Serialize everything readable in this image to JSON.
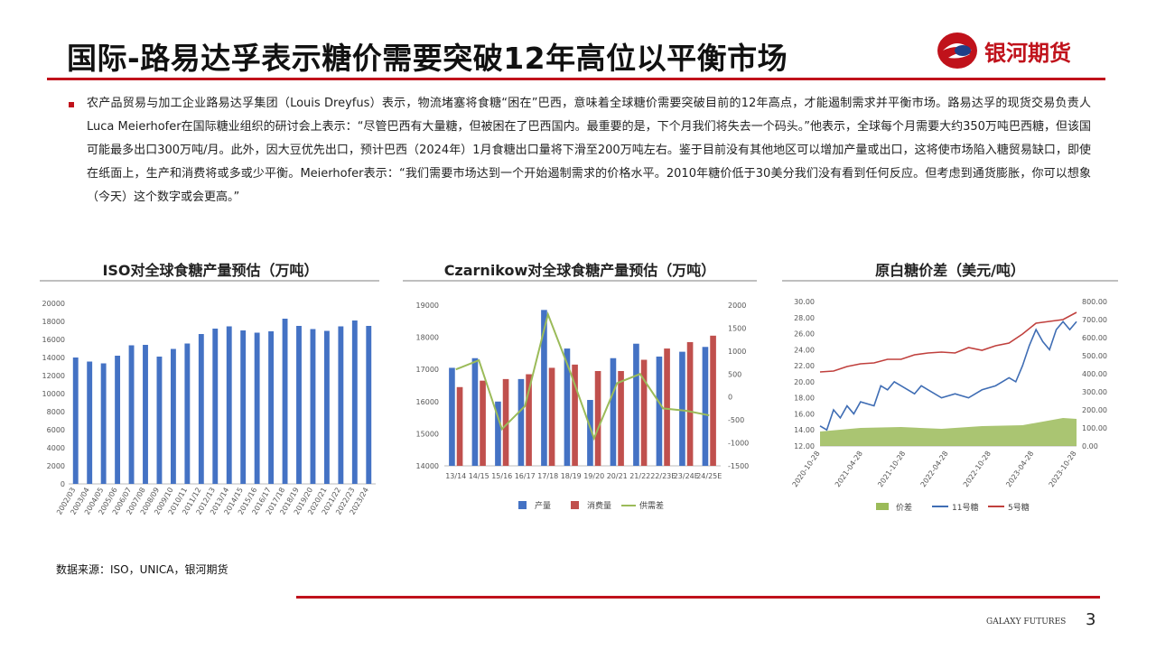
{
  "header": {
    "title": "国际-路易达孚表示糖价需要突破12年高位以平衡市场",
    "logo_text": "银河期货"
  },
  "body": {
    "paragraph": "农产品贸易与加工企业路易达孚集团（Louis Dreyfus）表示，物流堵塞将食糖“困在”巴西，意味着全球糖价需要突破目前的12年高点，才能遏制需求并平衡市场。路易达孚的现货交易负责人Luca Meierhofer在国际糖业组织的研讨会上表示：“尽管巴西有大量糖，但被困在了巴西国内。最重要的是，下个月我们将失去一个码头。”他表示，全球每个月需要大约350万吨巴西糖，但该国可能最多出口300万吨/月。此外，因大豆优先出口，预计巴西（2024年）1月食糖出口量将下滑至200万吨左右。鉴于目前没有其他地区可以增加产量或出口，这将使市场陷入糖贸易缺口，即使在纸面上，生产和消费将或多或少平衡。Meierhofer表示：“我们需要市场达到一个开始遏制需求的价格水平。2010年糖价低于30美分我们没有看到任何反应。但考虑到通货膨胀，你可以想象（今天）这个数字或会更高。”"
  },
  "colors": {
    "brand_red": "#c0121b",
    "bar_blue": "#4472c4",
    "bar_red": "#c0504d",
    "line_green": "#9bbb59",
    "series_blue": "#3f6db4",
    "series_red": "#c0403d"
  },
  "chart_data": [
    {
      "type": "bar",
      "title": "ISO对全球食糖产量预估（万吨）",
      "categories": [
        "2002/03",
        "2003/04",
        "2004/05",
        "2005/06",
        "2006/07",
        "2007/08",
        "2008/09",
        "2009/10",
        "2010/11",
        "2011/12",
        "2012/13",
        "2013/14",
        "2014/15",
        "2015/16",
        "2016/17",
        "2017/18",
        "2018/19",
        "2019/20",
        "2020/21",
        "2021/22",
        "2022/23",
        "2023/24"
      ],
      "values": [
        14000,
        13550,
        13350,
        14200,
        15350,
        15400,
        14100,
        14950,
        15550,
        16600,
        17200,
        17450,
        17000,
        16750,
        16900,
        18300,
        17500,
        17150,
        16950,
        17450,
        18100,
        17500
      ],
      "ylim": [
        0,
        20000
      ],
      "yticks": [
        0,
        2000,
        4000,
        6000,
        8000,
        10000,
        12000,
        14000,
        16000,
        18000,
        20000
      ]
    },
    {
      "type": "bar",
      "title": "Czarnikow对全球食糖产量预估（万吨）",
      "categories": [
        "13/14",
        "14/15",
        "15/16",
        "16/17",
        "17/18",
        "18/19",
        "19/20",
        "20/21",
        "21/22",
        "22/23E",
        "23/24E",
        "24/25E"
      ],
      "series": [
        {
          "name": "产量",
          "values": [
            17050,
            17350,
            16000,
            16700,
            18850,
            17650,
            16050,
            17350,
            17800,
            17400,
            17550,
            17700
          ]
        },
        {
          "name": "消费量",
          "values": [
            16450,
            16650,
            16700,
            16850,
            17050,
            17150,
            16950,
            16950,
            17300,
            17650,
            17850,
            18050
          ]
        },
        {
          "name": "供需差",
          "values": [
            600,
            800,
            -700,
            -200,
            1800,
            500,
            -900,
            300,
            500,
            -250,
            -300,
            -400
          ]
        }
      ],
      "ylim": [
        14000,
        19000
      ],
      "y2lim": [
        -1500,
        2000
      ],
      "yticks": [
        14000,
        15000,
        16000,
        17000,
        18000,
        19000
      ],
      "y2ticks": [
        -1500,
        -1000,
        -500,
        0,
        500,
        1000,
        1500,
        2000
      ]
    },
    {
      "type": "line",
      "title": "原白糖价差（美元/吨）",
      "x_ticks": [
        "2020-10-28",
        "2021-04-28",
        "2021-10-28",
        "2022-04-28",
        "2022-10-28",
        "2023-04-28",
        "2023-10-28"
      ],
      "series": [
        {
          "name": "价差",
          "points": [
            [
              0,
              80
            ],
            [
              6,
              100
            ],
            [
              12,
              105
            ],
            [
              18,
              95
            ],
            [
              24,
              110
            ],
            [
              30,
              115
            ],
            [
              36,
              155
            ],
            [
              38,
              150
            ]
          ]
        },
        {
          "name": "11号糖",
          "points": [
            [
              0,
              14.5
            ],
            [
              1,
              14.0
            ],
            [
              2,
              16.5
            ],
            [
              3,
              15.5
            ],
            [
              4,
              17.0
            ],
            [
              5,
              16.0
            ],
            [
              6,
              17.5
            ],
            [
              8,
              17.0
            ],
            [
              9,
              19.5
            ],
            [
              10,
              19.0
            ],
            [
              11,
              20.0
            ],
            [
              12,
              19.5
            ],
            [
              14,
              18.5
            ],
            [
              15,
              19.5
            ],
            [
              16,
              19.0
            ],
            [
              18,
              18.0
            ],
            [
              20,
              18.5
            ],
            [
              22,
              18.0
            ],
            [
              24,
              19.0
            ],
            [
              26,
              19.5
            ],
            [
              27,
              20.0
            ],
            [
              28,
              20.5
            ],
            [
              29,
              20.0
            ],
            [
              30,
              22.0
            ],
            [
              31,
              24.5
            ],
            [
              32,
              26.5
            ],
            [
              33,
              25.0
            ],
            [
              34,
              24.0
            ],
            [
              35,
              26.5
            ],
            [
              36,
              27.5
            ],
            [
              37,
              26.5
            ],
            [
              38,
              27.5
            ]
          ]
        },
        {
          "name": "5号糖",
          "points": [
            [
              0,
              410
            ],
            [
              2,
              415
            ],
            [
              4,
              440
            ],
            [
              6,
              455
            ],
            [
              8,
              460
            ],
            [
              10,
              480
            ],
            [
              12,
              480
            ],
            [
              14,
              505
            ],
            [
              16,
              515
            ],
            [
              18,
              520
            ],
            [
              20,
              515
            ],
            [
              22,
              545
            ],
            [
              24,
              530
            ],
            [
              26,
              555
            ],
            [
              28,
              570
            ],
            [
              30,
              620
            ],
            [
              32,
              680
            ],
            [
              34,
              690
            ],
            [
              36,
              700
            ],
            [
              38,
              740
            ]
          ]
        }
      ],
      "ylim": [
        12,
        30
      ],
      "y2lim": [
        0,
        800
      ],
      "yticks": [
        "12.00",
        "14.00",
        "16.00",
        "18.00",
        "20.00",
        "22.00",
        "24.00",
        "26.00",
        "28.00",
        "30.00"
      ],
      "y2ticks": [
        "0.00",
        "100.00",
        "200.00",
        "300.00",
        "400.00",
        "500.00",
        "600.00",
        "700.00",
        "800.00"
      ]
    }
  ],
  "source": "数据来源：ISO，UNICA，银河期货",
  "footer": {
    "brand": "GALAXY FUTURES",
    "page_number": "3"
  }
}
